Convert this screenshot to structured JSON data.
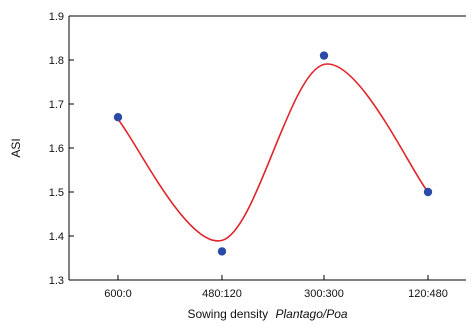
{
  "chart_data": {
    "type": "scatter",
    "title": "",
    "xlabel": "Sowing density",
    "xlabel_italic": "Plantago/Poa",
    "ylabel": "ASI",
    "categories": [
      "600:0",
      "480:120",
      "300:300",
      "120:480"
    ],
    "ylim": [
      1.3,
      1.9
    ],
    "yticks": [
      "1.3",
      "1.4",
      "1.5",
      "1.6",
      "1.7",
      "1.8",
      "1.9"
    ],
    "series": [
      {
        "values": [
          1.67,
          1.365,
          1.81,
          1.5
        ]
      }
    ],
    "curve_peaks": [
      1.665,
      1.39,
      1.79,
      1.5
    ],
    "grid": false,
    "legend": "none",
    "colors": {
      "points": "#2b4aa8",
      "curve": "#e0242b",
      "axis": "#000000"
    }
  }
}
